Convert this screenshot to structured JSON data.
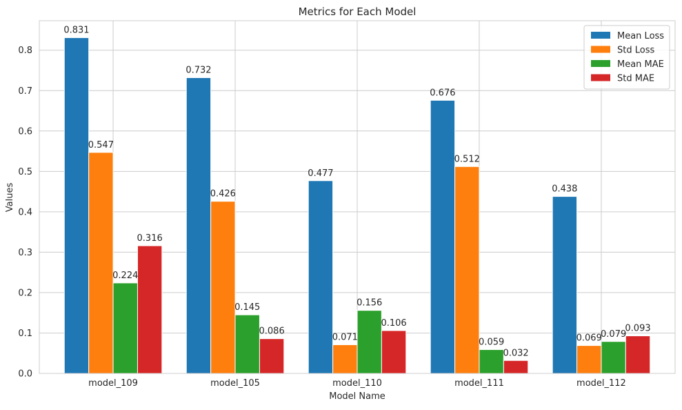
{
  "chart_data": {
    "type": "bar",
    "title": "Metrics for Each Model",
    "xlabel": "Model Name",
    "ylabel": "Values",
    "categories": [
      "model_109",
      "model_105",
      "model_110",
      "model_111",
      "model_112"
    ],
    "series": [
      {
        "name": "Mean Loss",
        "color": "#1f77b4",
        "values": [
          0.831,
          0.732,
          0.477,
          0.676,
          0.438
        ]
      },
      {
        "name": "Std Loss",
        "color": "#ff7f0e",
        "values": [
          0.547,
          0.426,
          0.071,
          0.512,
          0.069
        ]
      },
      {
        "name": "Mean MAE",
        "color": "#2ca02c",
        "values": [
          0.224,
          0.145,
          0.156,
          0.059,
          0.079
        ]
      },
      {
        "name": "Std MAE",
        "color": "#d62728",
        "values": [
          0.316,
          0.086,
          0.106,
          0.032,
          0.093
        ]
      }
    ],
    "ylim": [
      0,
      0.873
    ],
    "yticks": [
      0.0,
      0.1,
      0.2,
      0.3,
      0.4,
      0.5,
      0.6,
      0.7,
      0.8
    ],
    "ytick_labels": [
      "0.0",
      "0.1",
      "0.2",
      "0.3",
      "0.4",
      "0.5",
      "0.6",
      "0.7",
      "0.8"
    ],
    "data_labels": [
      [
        "0.831",
        "0.547",
        "0.224",
        "0.316"
      ],
      [
        "0.732",
        "0.426",
        "0.145",
        "0.086"
      ],
      [
        "0.477",
        "0.071",
        "0.156",
        "0.106"
      ],
      [
        "0.676",
        "0.512",
        "0.059",
        "0.032"
      ],
      [
        "0.438",
        "0.069",
        "0.079",
        "0.093"
      ]
    ],
    "grid": true,
    "legend_position": "top-right"
  }
}
